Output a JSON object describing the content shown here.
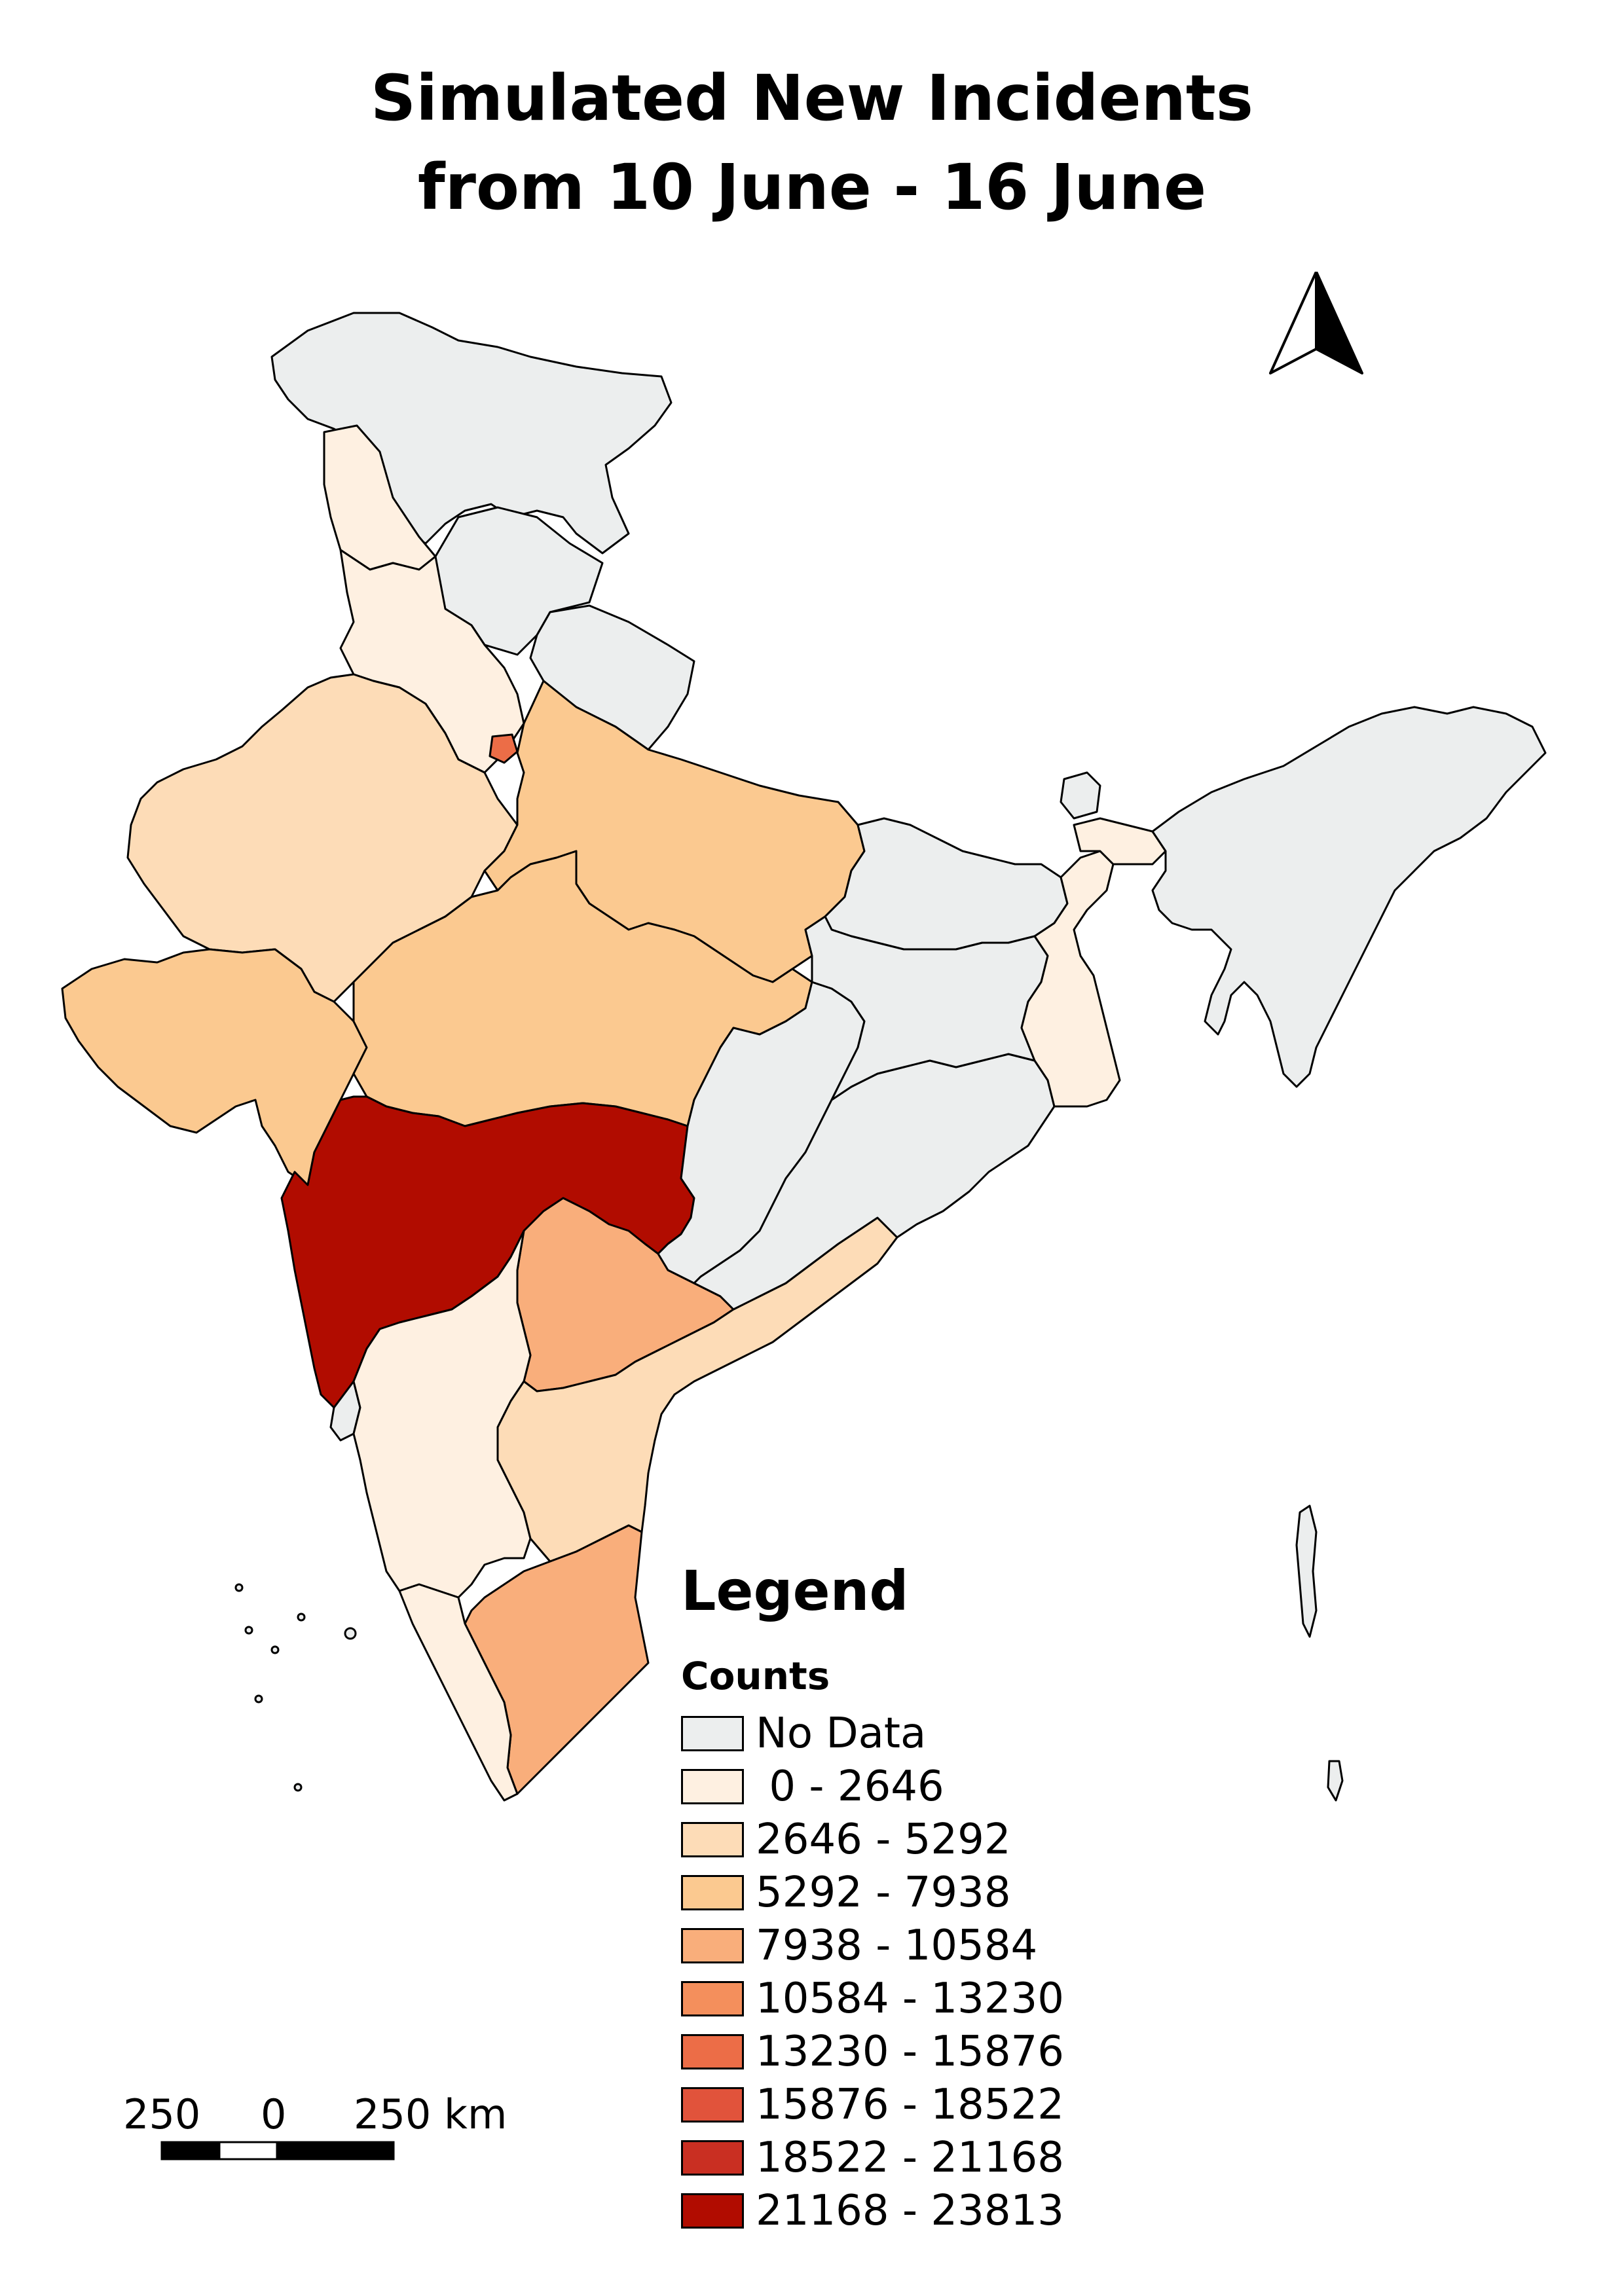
{
  "title": {
    "line1": "Simulated New Incidents",
    "line2": "from 10 June - 16 June"
  },
  "legend": {
    "title": "Legend",
    "subtitle": "Counts",
    "items": [
      {
        "label": "No Data",
        "color": "#eceeee"
      },
      {
        "label": " 0 - 2646",
        "color": "#fef0e1"
      },
      {
        "label": "2646 - 5292",
        "color": "#fddcb7"
      },
      {
        "label": "5292 - 7938",
        "color": "#fbc990"
      },
      {
        "label": "7938 - 10584",
        "color": "#f9ae7b"
      },
      {
        "label": "10584 - 13230",
        "color": "#f48f5c"
      },
      {
        "label": "13230 - 15876",
        "color": "#ec6d47"
      },
      {
        "label": "15876 - 18522",
        "color": "#e1533b"
      },
      {
        "label": "18522 - 21168",
        "color": "#c92f22"
      },
      {
        "label": "21168 - 23813",
        "color": "#b10c00"
      }
    ]
  },
  "scale_bar": {
    "left_label": "250",
    "center_label": "0",
    "right_label": "250 km"
  },
  "regions": [
    {
      "name": "Jammu and Kashmir",
      "class": "No Data"
    },
    {
      "name": "Himachal Pradesh",
      "class": "0 - 2646"
    },
    {
      "name": "Uttarakhand",
      "class": "No Data"
    },
    {
      "name": "Punjab / Haryana",
      "class": "0 - 2646"
    },
    {
      "name": "Delhi",
      "class": "13230 - 15876"
    },
    {
      "name": "Rajasthan",
      "class": "2646 - 5292"
    },
    {
      "name": "Uttar Pradesh",
      "class": "5292 - 7938"
    },
    {
      "name": "Gujarat",
      "class": "5292 - 7938"
    },
    {
      "name": "Madhya Pradesh",
      "class": "5292 - 7938"
    },
    {
      "name": "Maharashtra",
      "class": "21168 - 23813"
    },
    {
      "name": "Telangana",
      "class": "7938 - 10584"
    },
    {
      "name": "Andhra Pradesh",
      "class": "2646 - 5292"
    },
    {
      "name": "Karnataka",
      "class": "0 - 2646"
    },
    {
      "name": "Tamil Nadu",
      "class": "7938 - 10584"
    },
    {
      "name": "Kerala",
      "class": "0 - 2646"
    },
    {
      "name": "Goa",
      "class": "No Data"
    },
    {
      "name": "Chhattisgarh",
      "class": "No Data"
    },
    {
      "name": "Odisha",
      "class": "No Data"
    },
    {
      "name": "Bihar",
      "class": "No Data"
    },
    {
      "name": "Jharkhand",
      "class": "No Data"
    },
    {
      "name": "West Bengal",
      "class": "0 - 2646"
    },
    {
      "name": "Sikkim",
      "class": "No Data"
    },
    {
      "name": "Northeast states",
      "class": "No Data"
    }
  ]
}
